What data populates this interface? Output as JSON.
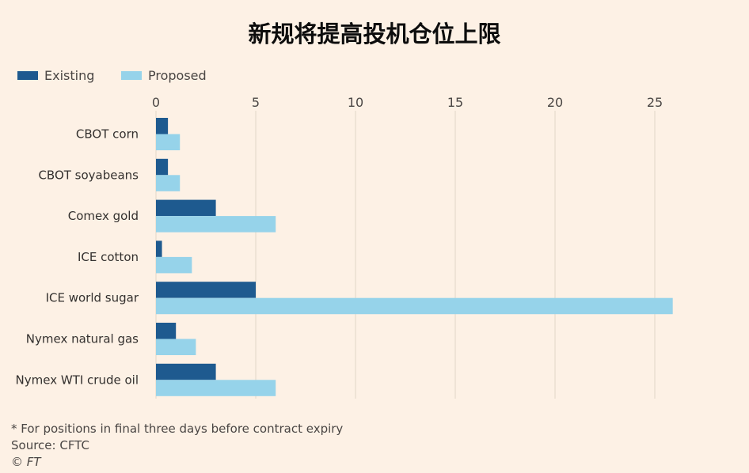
{
  "title": "新规将提高投机仓位上限",
  "legend": [
    {
      "label": "Existing",
      "color": "#1e5a8f"
    },
    {
      "label": "Proposed",
      "color": "#96d3ea"
    }
  ],
  "chart_data": {
    "type": "bar",
    "orientation": "horizontal",
    "categories": [
      "CBOT corn",
      "CBOT soyabeans",
      "Comex gold",
      "ICE cotton",
      "ICE world sugar",
      "Nymex natural gas",
      "Nymex WTI crude oil"
    ],
    "series": [
      {
        "name": "Existing",
        "color": "#1e5a8f",
        "values": [
          0.6,
          0.6,
          3.0,
          0.3,
          5.0,
          1.0,
          3.0
        ]
      },
      {
        "name": "Proposed",
        "color": "#96d3ea",
        "values": [
          1.2,
          1.2,
          6.0,
          1.8,
          25.9,
          2.0,
          6.0
        ]
      }
    ],
    "xticks": [
      0,
      5,
      10,
      15,
      20,
      25
    ],
    "xlim": [
      0,
      26
    ],
    "grid": true,
    "legend_position": "top-left"
  },
  "footnotes": {
    "note": "* For positions in final three days before contract expiry",
    "source": "Source: CFTC",
    "credit": "© FT"
  }
}
